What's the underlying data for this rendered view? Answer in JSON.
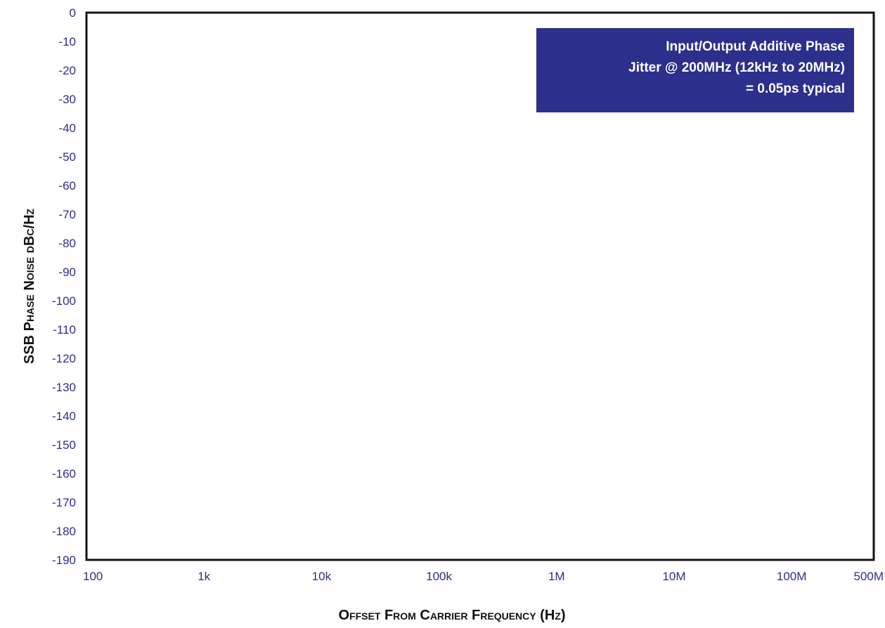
{
  "chart_data": {
    "type": "line",
    "title": "",
    "ylabel": "SSB Phase Noise dBc/Hz",
    "xlabel": "Offset From Carrier Frequency (Hz)",
    "x_scale": "log",
    "xlim": [
      100,
      500000000
    ],
    "ylim": [
      -190,
      0
    ],
    "x_ticks": [
      {
        "value": 100,
        "label": "100"
      },
      {
        "value": 1000,
        "label": "1k"
      },
      {
        "value": 10000,
        "label": "10k"
      },
      {
        "value": 100000,
        "label": "100k"
      },
      {
        "value": 1000000,
        "label": "1M"
      },
      {
        "value": 10000000,
        "label": "10M"
      },
      {
        "value": 100000000,
        "label": "100M"
      },
      {
        "value": 500000000,
        "label": "500M"
      }
    ],
    "y_ticks": [
      0,
      -10,
      -20,
      -30,
      -40,
      -50,
      -60,
      -70,
      -80,
      -90,
      -100,
      -110,
      -120,
      -130,
      -140,
      -150,
      -160,
      -170,
      -180,
      -190
    ],
    "grid": false,
    "series": [],
    "annotation": {
      "lines": [
        "Input/Output Additive Phase",
        "Jitter @ 200MHz (12kHz to 20MHz)",
        "= 0.05ps typical"
      ],
      "position": "top-right",
      "background": "#2d2f8c",
      "text_color": "#ffffff"
    },
    "colors": {
      "tick_label": "#2d2f8c",
      "axis": "#111111",
      "axis_title": "#111111"
    }
  }
}
